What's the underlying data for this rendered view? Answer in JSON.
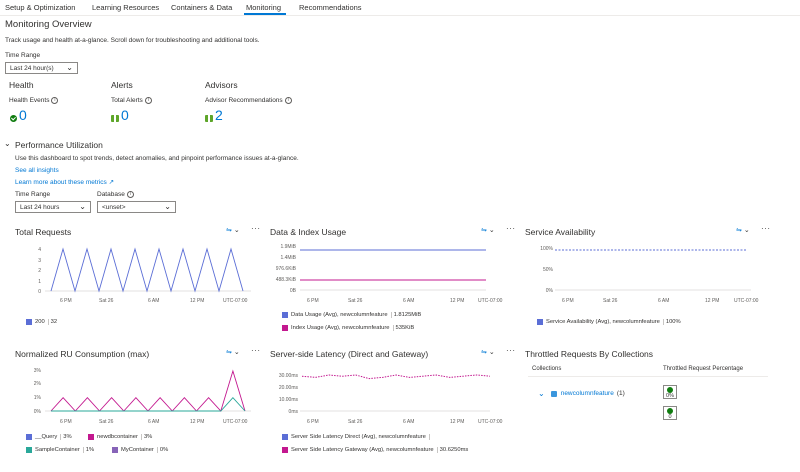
{
  "tabs": [
    {
      "label": "Setup & Optimization"
    },
    {
      "label": "Learning Resources"
    },
    {
      "label": "Containers & Data"
    },
    {
      "label": "Monitoring"
    },
    {
      "label": "Recommendations"
    }
  ],
  "active_tab": "Monitoring",
  "overview": {
    "title": "Monitoring Overview",
    "description": "Track usage and health at-a-glance. Scroll down for troubleshooting and additional tools.",
    "time_range_label": "Time Range",
    "time_range_value": "Last 24 hour(s)"
  },
  "summary": {
    "health": {
      "heading": "Health",
      "metric": "Health Events",
      "value": "0"
    },
    "alerts": {
      "heading": "Alerts",
      "metric": "Total Alerts",
      "value": "0"
    },
    "advisors": {
      "heading": "Advisors",
      "metric": "Advisor Recommendations",
      "value": "2"
    }
  },
  "performance": {
    "title": "Performance Utilization",
    "description": "Use this dashboard to spot trends, detect anomalies, and pinpoint performance issues at-a-glance.",
    "link_insights": "See all insights",
    "link_metrics": "Learn more about these metrics",
    "time_range_label": "Time Range",
    "time_range_value": "Last 24 hours",
    "database_label": "Database",
    "database_value": "<unset>"
  },
  "tiles": {
    "total_requests": {
      "title": "Total Requests",
      "legend": [
        {
          "name": "200",
          "value": "32",
          "color": "#5b6ed6"
        }
      ]
    },
    "data_index": {
      "title": "Data & Index Usage",
      "legend": [
        {
          "name": "Data Usage (Avg), newcolumnfeature",
          "value": "1.8125MiB",
          "color": "#5b6ed6"
        },
        {
          "name": "Index Usage (Avg), newcolumnfeature",
          "value": "535KiB",
          "color": "#c3188f"
        }
      ]
    },
    "availability": {
      "title": "Service Availability",
      "legend": [
        {
          "name": "Service Availability (Avg), newcolumnfeature",
          "value": "100%",
          "color": "#5b6ed6"
        }
      ]
    },
    "ru": {
      "title": "Normalized RU Consumption (max)",
      "legend": [
        {
          "name": "__Query",
          "value": "3%",
          "color": "#5b6ed6"
        },
        {
          "name": "newdbcontainer",
          "value": "3%",
          "color": "#c3188f"
        },
        {
          "name": "SampleContainer",
          "value": "1%",
          "color": "#2aa89a"
        },
        {
          "name": "MyContainer",
          "value": "0%",
          "color": "#8764b8"
        }
      ]
    },
    "latency": {
      "title": "Server-side Latency (Direct and Gateway)",
      "legend": [
        {
          "name": "Server Side Latency Direct (Avg), newcolumnfeature",
          "value": "",
          "color": "#5b6ed6"
        },
        {
          "name": "Server Side Latency Gateway (Avg), newcolumnfeature",
          "value": "30.6250ms",
          "color": "#c3188f"
        }
      ]
    },
    "throttled": {
      "title": "Throttled Requests By Collections",
      "col_collections": "Collections",
      "col_percentage": "Throttled Request Percentage",
      "row_label": "newcolumnfeature",
      "row_count": "(1)",
      "value_1": "0%",
      "value_2": "0"
    }
  },
  "chart_data": [
    {
      "type": "line",
      "title": "Total Requests",
      "x_ticks": [
        "6 PM",
        "Sat 26",
        "6 AM",
        "12 PM",
        "UTC-07:00"
      ],
      "y_ticks": [
        "0",
        "1",
        "2",
        "3",
        "4"
      ],
      "ylim": [
        0,
        4
      ],
      "series": [
        {
          "name": "200",
          "values": [
            0,
            4,
            0,
            4,
            0,
            4,
            0,
            4,
            0,
            4,
            0,
            4,
            0,
            4,
            0,
            4,
            0
          ]
        }
      ]
    },
    {
      "type": "line",
      "title": "Data & Index Usage",
      "x_ticks": [
        "6 PM",
        "Sat 26",
        "6 AM",
        "12 PM",
        "UTC-07:00"
      ],
      "y_ticks": [
        "0B",
        "488.3KiB",
        "976.6KiB",
        "1.4MiB",
        "1.9MiB"
      ],
      "series": [
        {
          "name": "Data Usage (Avg), newcolumnfeature",
          "values": [
            1.81,
            1.81
          ]
        },
        {
          "name": "Index Usage (Avg), newcolumnfeature",
          "values": [
            0.52,
            0.52
          ]
        }
      ]
    },
    {
      "type": "line",
      "title": "Service Availability",
      "x_ticks": [
        "6 PM",
        "Sat 26",
        "6 AM",
        "12 PM",
        "UTC-07:00"
      ],
      "y_ticks": [
        "0%",
        "50%",
        "100%"
      ],
      "series": [
        {
          "name": "Service Availability (Avg), newcolumnfeature",
          "values": [
            100,
            100
          ]
        }
      ]
    },
    {
      "type": "line",
      "title": "Normalized RU Consumption (max)",
      "x_ticks": [
        "6 PM",
        "Sat 26",
        "6 AM",
        "12 PM",
        "UTC-07:00"
      ],
      "y_ticks": [
        "0%",
        "1%",
        "2%",
        "3%"
      ],
      "series": [
        {
          "name": "newdbcontainer",
          "values": [
            0,
            1,
            0,
            1,
            0,
            1,
            0,
            1,
            0,
            1,
            0,
            1,
            0,
            1,
            0,
            3,
            0
          ]
        },
        {
          "name": "SampleContainer",
          "values": [
            0,
            0,
            0,
            0,
            0,
            0,
            0,
            0,
            0,
            0,
            0,
            0,
            0,
            0,
            0,
            1,
            0
          ]
        }
      ]
    },
    {
      "type": "line",
      "title": "Server-side Latency (Direct and Gateway)",
      "x_ticks": [
        "6 PM",
        "Sat 26",
        "6 AM",
        "12 PM",
        "UTC-07:00"
      ],
      "y_ticks": [
        "0ms",
        "10.00ms",
        "20.00ms",
        "30.00ms"
      ],
      "series": [
        {
          "name": "Server Side Latency Gateway (Avg), newcolumnfeature",
          "values": [
            29,
            28,
            30,
            29,
            30,
            27,
            28,
            30,
            28,
            29,
            30,
            28,
            29,
            30,
            29
          ]
        }
      ]
    }
  ]
}
